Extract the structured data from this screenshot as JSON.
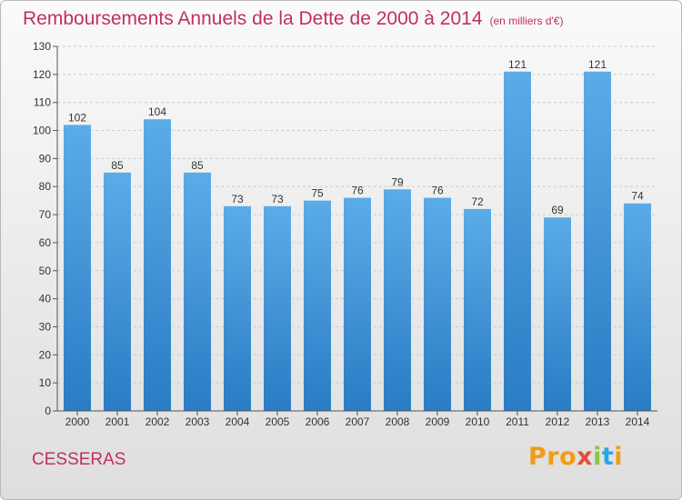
{
  "chart_data": {
    "type": "bar",
    "title": "Remboursements Annuels de la Dette de 2000 à 2014",
    "unit_note": "(en milliers d'€)",
    "categories": [
      "2000",
      "2001",
      "2002",
      "2003",
      "2004",
      "2005",
      "2006",
      "2007",
      "2008",
      "2009",
      "2010",
      "2011",
      "2012",
      "2013",
      "2014"
    ],
    "values": [
      102,
      85,
      104,
      85,
      73,
      73,
      75,
      76,
      79,
      76,
      72,
      121,
      69,
      121,
      74
    ],
    "ylim": [
      0,
      130
    ],
    "yticks": [
      0,
      10,
      20,
      30,
      40,
      50,
      60,
      70,
      80,
      90,
      100,
      110,
      120,
      130
    ],
    "grid": true,
    "xlabel": "",
    "ylabel": "",
    "bar_color_top": "#5aace8",
    "bar_color_bottom": "#2a7cc4"
  },
  "commune_name": "CESSERAS",
  "logo": {
    "letters": [
      "Pro",
      "x",
      "i",
      "t",
      "i"
    ]
  },
  "colors": {
    "title": "#c0305f",
    "grid": "#cccccc",
    "axis": "#555555"
  }
}
